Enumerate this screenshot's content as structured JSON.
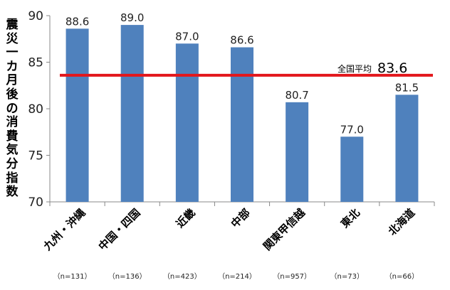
{
  "chart_data": {
    "type": "bar",
    "ylabel": "震災一カ月後の消費気分指数",
    "ylim": [
      70,
      90
    ],
    "yticks": [
      70,
      75,
      80,
      85,
      90
    ],
    "categories": [
      "九州・沖縄",
      "中国・四国",
      "近畿",
      "中部",
      "関東甲信越",
      "東北",
      "北海道"
    ],
    "sample_sizes": [
      "（n=131）",
      "（n=136）",
      "（n=423）",
      "（n=214）",
      "（n=957）",
      "（n=73）",
      "（n=66）"
    ],
    "values": [
      88.6,
      89.0,
      87.0,
      86.6,
      80.7,
      77.0,
      81.5
    ],
    "data_labels": [
      "88.6",
      "89.0",
      "87.0",
      "86.6",
      "80.7",
      "77.0",
      "81.5"
    ],
    "bar_color": "#4f81bd",
    "reference_line": {
      "label": "全国平均",
      "value": 83.6,
      "value_label": "83.6",
      "color": "#e3161b"
    },
    "grid": false,
    "legend": "none"
  }
}
